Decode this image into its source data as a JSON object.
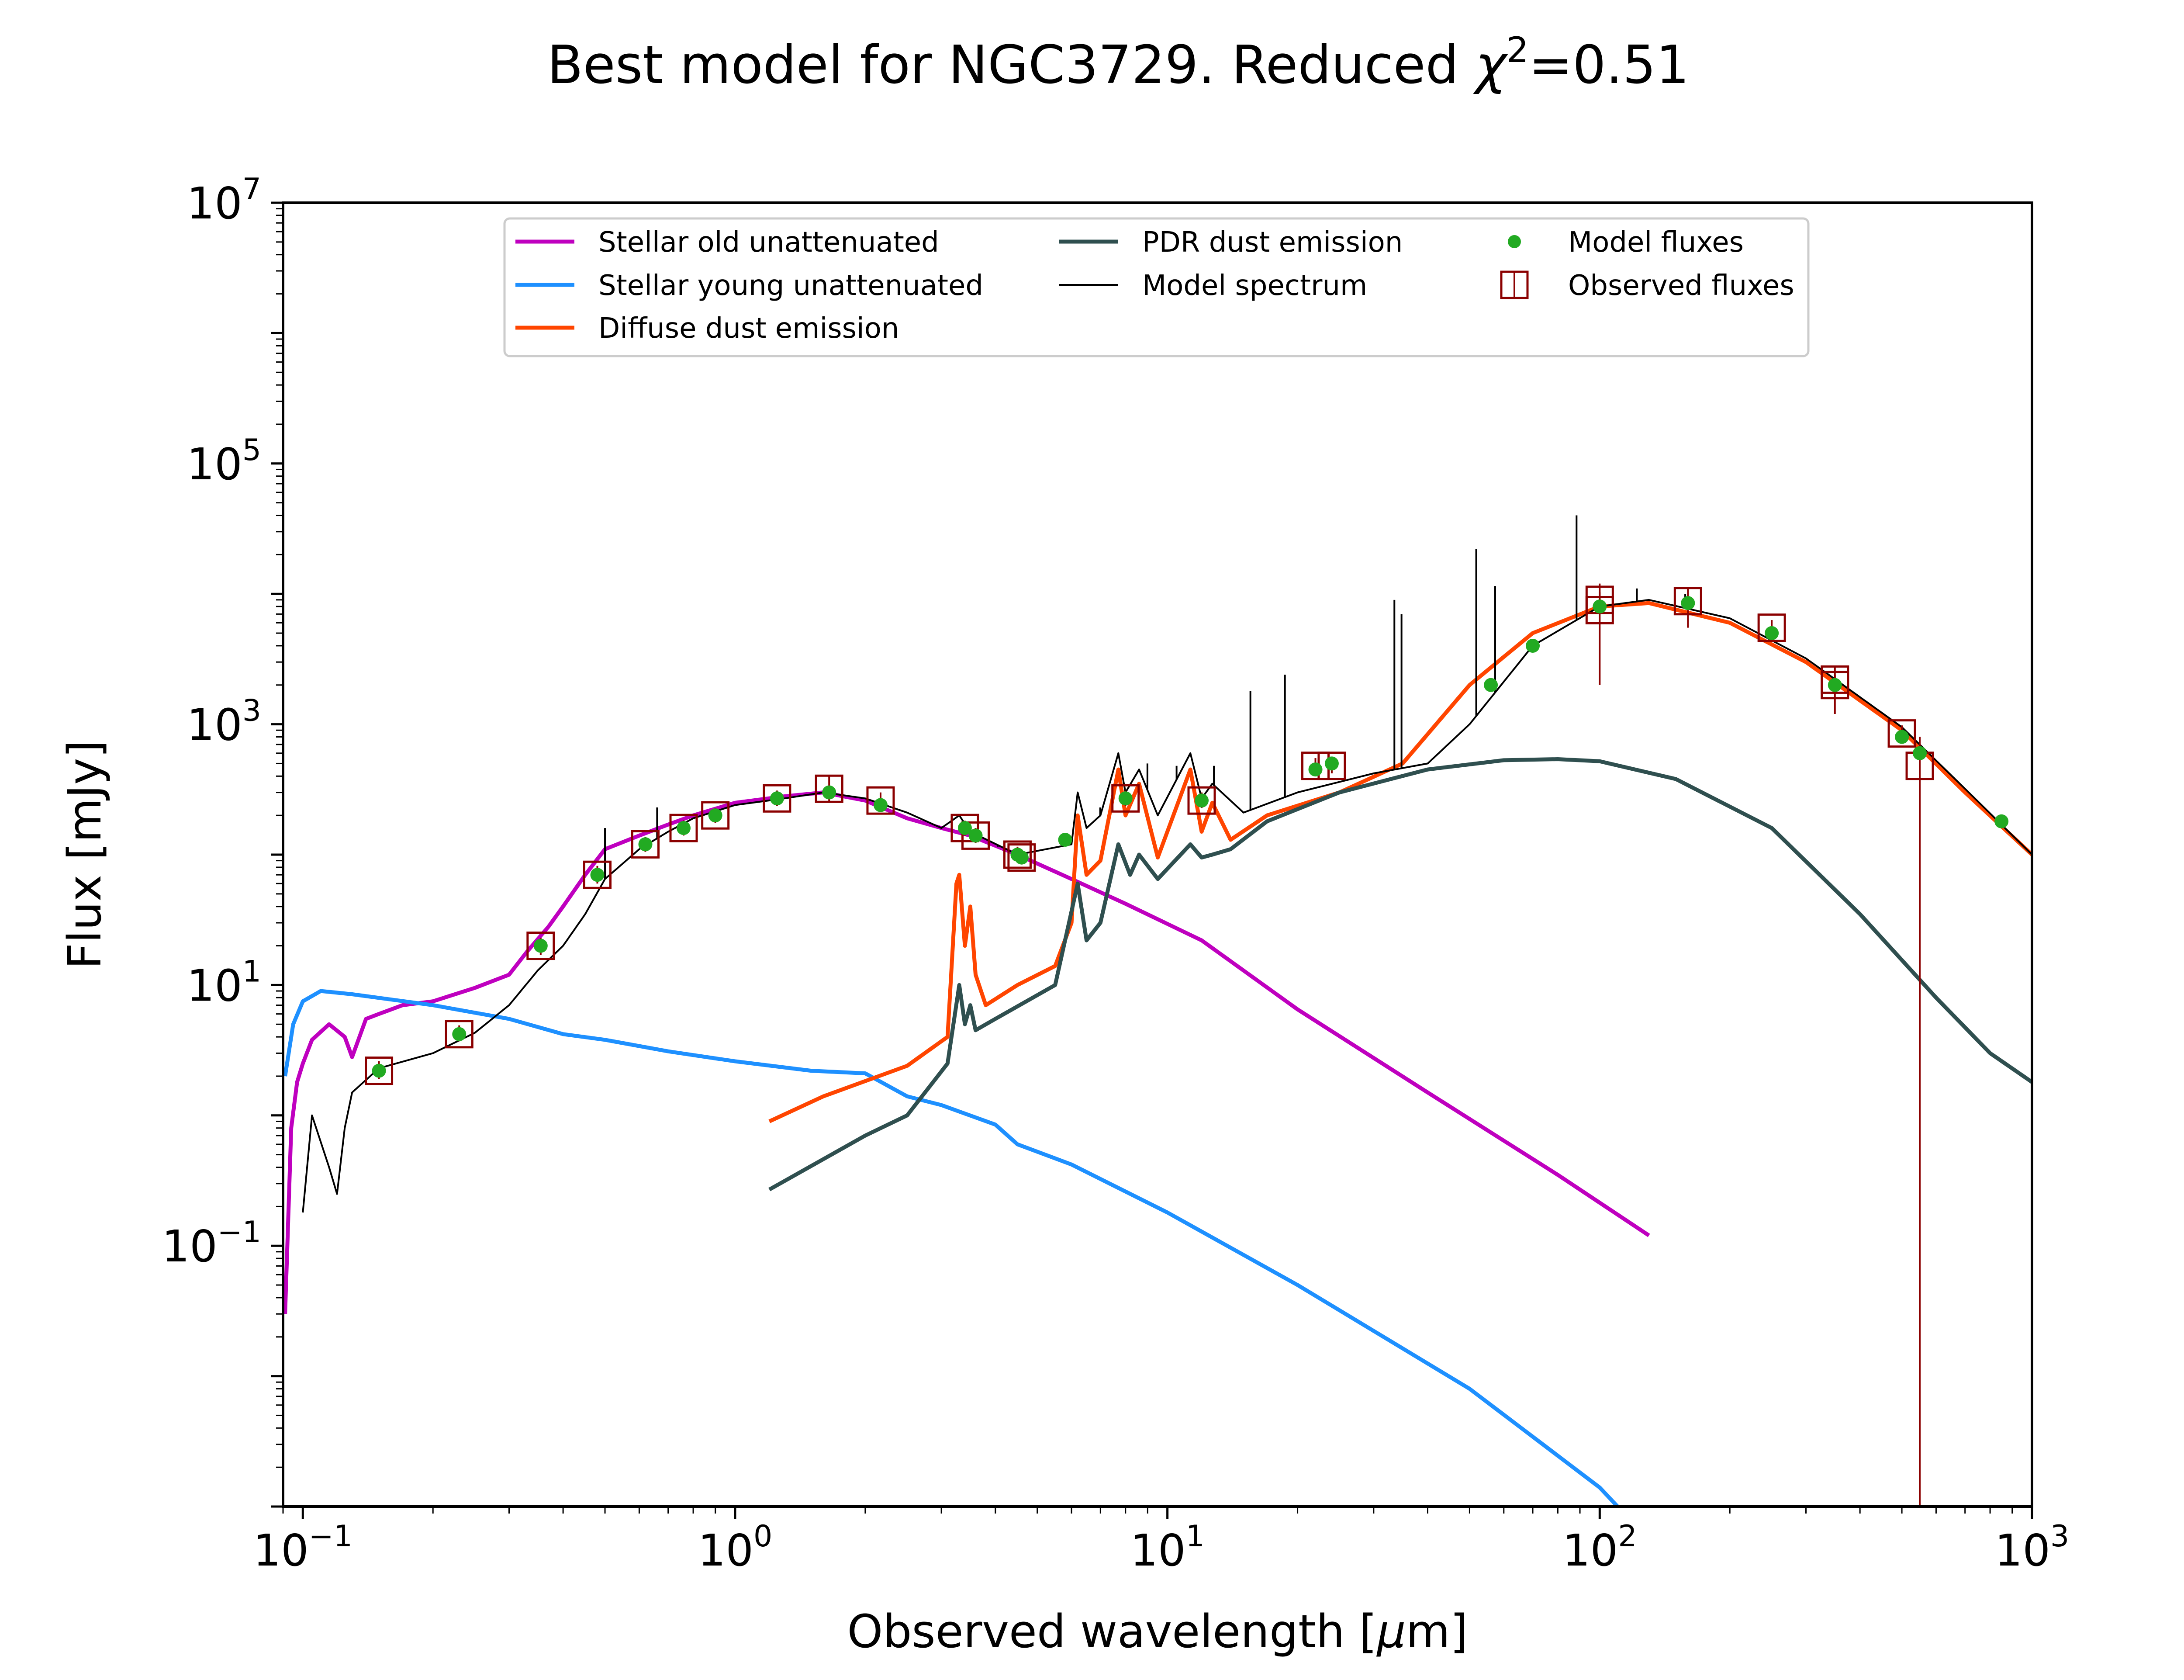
{
  "chart_data": {
    "type": "line",
    "title": "Best model for NGC3729. Reduced χ²=0.51",
    "title_parts": {
      "prefix": "Best model for NGC3729. Reduced ",
      "symbol": "χ",
      "exponent": "2",
      "suffix": "=0.51"
    },
    "xlabel": "Observed wavelength [μm]",
    "xlabel_parts": {
      "prefix": "Observed wavelength [",
      "unit_italic": "μ",
      "unit_rest": "m]"
    },
    "ylabel": "Flux [mJy]",
    "xscale": "log",
    "yscale": "log",
    "xlim": [
      0.09,
      1000
    ],
    "ylim": [
      0.001,
      10000000
    ],
    "grid": false,
    "legend_position": "top",
    "x_ticks": [
      {
        "value": 0.1,
        "base": "10",
        "exp": "−1"
      },
      {
        "value": 1,
        "base": "10",
        "exp": "0"
      },
      {
        "value": 10,
        "base": "10",
        "exp": "1"
      },
      {
        "value": 100,
        "base": "10",
        "exp": "2"
      },
      {
        "value": 1000,
        "base": "10",
        "exp": "3"
      }
    ],
    "y_ticks": [
      {
        "value": 0.1,
        "base": "10",
        "exp": "−1"
      },
      {
        "value": 10,
        "base": "10",
        "exp": "1"
      },
      {
        "value": 1000,
        "base": "10",
        "exp": "3"
      },
      {
        "value": 100000,
        "base": "10",
        "exp": "5"
      },
      {
        "value": 10000000,
        "base": "10",
        "exp": "7"
      }
    ],
    "legend": [
      {
        "label": "Stellar old unattenuated",
        "kind": "line",
        "color": "#bf00bf"
      },
      {
        "label": "Stellar young unattenuated",
        "kind": "line",
        "color": "#1e90ff"
      },
      {
        "label": "Diffuse dust emission",
        "kind": "line",
        "color": "#ff4500"
      },
      {
        "label": "PDR dust emission",
        "kind": "line",
        "color": "#2f4f4f"
      },
      {
        "label": "Model spectrum",
        "kind": "thin-line",
        "color": "#000000"
      },
      {
        "label": "Model fluxes",
        "kind": "dot",
        "color": "#22aa22"
      },
      {
        "label": "Observed fluxes",
        "kind": "square",
        "color": "#8b0000"
      }
    ],
    "series": [
      {
        "name": "Stellar old unattenuated",
        "color": "#bf00bf",
        "points": [
          [
            0.091,
            0.03
          ],
          [
            0.094,
            0.8
          ],
          [
            0.097,
            1.8
          ],
          [
            0.1,
            2.5
          ],
          [
            0.105,
            3.8
          ],
          [
            0.115,
            5
          ],
          [
            0.125,
            4
          ],
          [
            0.13,
            2.8
          ],
          [
            0.14,
            5.5
          ],
          [
            0.15,
            6
          ],
          [
            0.17,
            7
          ],
          [
            0.2,
            7.5
          ],
          [
            0.25,
            9.5
          ],
          [
            0.3,
            12
          ],
          [
            0.33,
            18
          ],
          [
            0.37,
            28
          ],
          [
            0.4,
            40
          ],
          [
            0.45,
            70
          ],
          [
            0.5,
            110
          ],
          [
            0.6,
            140
          ],
          [
            0.7,
            170
          ],
          [
            0.8,
            200
          ],
          [
            1.0,
            250
          ],
          [
            1.3,
            280
          ],
          [
            1.6,
            300
          ],
          [
            2.0,
            260
          ],
          [
            2.5,
            190
          ],
          [
            3.0,
            160
          ],
          [
            3.5,
            140
          ],
          [
            4.5,
            100
          ],
          [
            6,
            65
          ],
          [
            8,
            42
          ],
          [
            12,
            22
          ],
          [
            20,
            6.5
          ],
          [
            40,
            1.5
          ],
          [
            80,
            0.35
          ],
          [
            130,
            0.12
          ]
        ]
      },
      {
        "name": "Stellar young unattenuated",
        "color": "#1e90ff",
        "points": [
          [
            0.091,
            2
          ],
          [
            0.095,
            5
          ],
          [
            0.1,
            7.5
          ],
          [
            0.11,
            9
          ],
          [
            0.13,
            8.5
          ],
          [
            0.2,
            7
          ],
          [
            0.3,
            5.5
          ],
          [
            0.4,
            4.2
          ],
          [
            0.5,
            3.8
          ],
          [
            0.7,
            3.1
          ],
          [
            1.0,
            2.6
          ],
          [
            1.5,
            2.2
          ],
          [
            2.0,
            2.1
          ],
          [
            2.5,
            1.4
          ],
          [
            3.0,
            1.2
          ],
          [
            4.0,
            0.85
          ],
          [
            4.5,
            0.6
          ],
          [
            6,
            0.42
          ],
          [
            10,
            0.18
          ],
          [
            20,
            0.05
          ],
          [
            50,
            0.008
          ],
          [
            100,
            0.0014
          ],
          [
            110,
            0.001
          ]
        ]
      },
      {
        "name": "Diffuse dust emission",
        "color": "#ff4500",
        "points": [
          [
            1.2,
            0.9
          ],
          [
            1.6,
            1.4
          ],
          [
            2.5,
            2.4
          ],
          [
            3.1,
            4
          ],
          [
            3.25,
            60
          ],
          [
            3.3,
            70
          ],
          [
            3.4,
            20
          ],
          [
            3.5,
            40
          ],
          [
            3.6,
            12
          ],
          [
            3.8,
            7
          ],
          [
            4.5,
            10
          ],
          [
            5.5,
            14
          ],
          [
            6.0,
            30
          ],
          [
            6.2,
            200
          ],
          [
            6.5,
            70
          ],
          [
            7.0,
            90
          ],
          [
            7.7,
            450
          ],
          [
            8.0,
            200
          ],
          [
            8.6,
            350
          ],
          [
            9.5,
            95
          ],
          [
            11.3,
            450
          ],
          [
            12,
            150
          ],
          [
            12.7,
            250
          ],
          [
            14,
            130
          ],
          [
            17,
            200
          ],
          [
            25,
            300
          ],
          [
            35,
            500
          ],
          [
            50,
            2000
          ],
          [
            70,
            5000
          ],
          [
            100,
            8000
          ],
          [
            130,
            8500
          ],
          [
            200,
            6000
          ],
          [
            300,
            3000
          ],
          [
            500,
            900
          ],
          [
            700,
            300
          ],
          [
            1000,
            100
          ]
        ]
      },
      {
        "name": "PDR dust emission",
        "color": "#2f4f4f",
        "points": [
          [
            1.2,
            0.27
          ],
          [
            2.0,
            0.7
          ],
          [
            2.5,
            1.0
          ],
          [
            3.1,
            2.5
          ],
          [
            3.3,
            10
          ],
          [
            3.4,
            5
          ],
          [
            3.5,
            7
          ],
          [
            3.6,
            4.5
          ],
          [
            4.0,
            5.5
          ],
          [
            5.5,
            10
          ],
          [
            6.2,
            60
          ],
          [
            6.5,
            22
          ],
          [
            7.0,
            30
          ],
          [
            7.7,
            120
          ],
          [
            8.2,
            70
          ],
          [
            8.6,
            100
          ],
          [
            9.5,
            65
          ],
          [
            11.3,
            120
          ],
          [
            12,
            95
          ],
          [
            12.7,
            100
          ],
          [
            14,
            110
          ],
          [
            17,
            180
          ],
          [
            25,
            300
          ],
          [
            40,
            450
          ],
          [
            60,
            530
          ],
          [
            80,
            540
          ],
          [
            100,
            520
          ],
          [
            150,
            380
          ],
          [
            250,
            160
          ],
          [
            400,
            35
          ],
          [
            600,
            8
          ],
          [
            800,
            3
          ],
          [
            1000,
            1.8
          ]
        ]
      },
      {
        "name": "Model spectrum",
        "color": "#000000",
        "points": [
          [
            0.1,
            0.18
          ],
          [
            0.105,
            1
          ],
          [
            0.115,
            0.4
          ],
          [
            0.12,
            0.25
          ],
          [
            0.125,
            0.8
          ],
          [
            0.13,
            1.5
          ],
          [
            0.15,
            2.3
          ],
          [
            0.2,
            3
          ],
          [
            0.25,
            4.3
          ],
          [
            0.3,
            7
          ],
          [
            0.35,
            13
          ],
          [
            0.4,
            20
          ],
          [
            0.45,
            35
          ],
          [
            0.5,
            65
          ],
          [
            0.6,
            110
          ],
          [
            0.7,
            150
          ],
          [
            0.8,
            190
          ],
          [
            1.0,
            240
          ],
          [
            1.3,
            270
          ],
          [
            1.6,
            300
          ],
          [
            2.0,
            270
          ],
          [
            2.5,
            210
          ],
          [
            3.0,
            160
          ],
          [
            3.3,
            200
          ],
          [
            3.5,
            150
          ],
          [
            4.5,
            100
          ],
          [
            6.0,
            120
          ],
          [
            6.2,
            300
          ],
          [
            6.5,
            160
          ],
          [
            7.0,
            200
          ],
          [
            7.7,
            600
          ],
          [
            8.0,
            300
          ],
          [
            8.6,
            450
          ],
          [
            9.5,
            200
          ],
          [
            11.3,
            600
          ],
          [
            12,
            270
          ],
          [
            12.7,
            350
          ],
          [
            15,
            210
          ],
          [
            20,
            300
          ],
          [
            30,
            420
          ],
          [
            40,
            500
          ],
          [
            50,
            1000
          ],
          [
            70,
            4000
          ],
          [
            100,
            8000
          ],
          [
            130,
            9000
          ],
          [
            200,
            6500
          ],
          [
            300,
            3200
          ],
          [
            500,
            950
          ],
          [
            700,
            320
          ],
          [
            1000,
            100
          ]
        ]
      }
    ],
    "emission_lines": [
      [
        0.5,
        160
      ],
      [
        0.66,
        230
      ],
      [
        1.28,
        260
      ],
      [
        4.05,
        115
      ],
      [
        6.99,
        230
      ],
      [
        8.99,
        500
      ],
      [
        10.5,
        480
      ],
      [
        12.81,
        480
      ],
      [
        15.56,
        1800
      ],
      [
        18.7,
        2400
      ],
      [
        33.5,
        9000
      ],
      [
        34.8,
        7000
      ],
      [
        51.8,
        22000
      ],
      [
        57.3,
        11500
      ],
      [
        88.4,
        40000
      ],
      [
        121.9,
        11000
      ],
      [
        157.7,
        10000
      ]
    ],
    "model_fluxes": [
      [
        0.15,
        2.2
      ],
      [
        0.23,
        4.2
      ],
      [
        0.355,
        20
      ],
      [
        0.48,
        70
      ],
      [
        0.62,
        120
      ],
      [
        0.76,
        160
      ],
      [
        0.9,
        200
      ],
      [
        1.25,
        270
      ],
      [
        1.65,
        300
      ],
      [
        2.17,
        240
      ],
      [
        3.4,
        160
      ],
      [
        3.6,
        140
      ],
      [
        4.5,
        100
      ],
      [
        4.6,
        95
      ],
      [
        5.8,
        130
      ],
      [
        8.0,
        270
      ],
      [
        12.0,
        260
      ],
      [
        22,
        450
      ],
      [
        24,
        500
      ],
      [
        56,
        2000
      ],
      [
        70,
        4000
      ],
      [
        100,
        8000
      ],
      [
        160,
        8500
      ],
      [
        250,
        5000
      ],
      [
        350,
        2000
      ],
      [
        500,
        800
      ],
      [
        550,
        600
      ],
      [
        850,
        180
      ]
    ],
    "observed_fluxes": [
      {
        "x": 0.15,
        "y": 2.2,
        "err": [
          1.9,
          2.6
        ]
      },
      {
        "x": 0.23,
        "y": 4.2,
        "err": [
          3.7,
          4.9
        ]
      },
      {
        "x": 0.355,
        "y": 20,
        "err": [
          17,
          23
        ]
      },
      {
        "x": 0.48,
        "y": 70,
        "err": [
          60,
          82
        ]
      },
      {
        "x": 0.62,
        "y": 120,
        "err": [
          105,
          137
        ]
      },
      {
        "x": 0.76,
        "y": 160,
        "err": [
          140,
          183
        ]
      },
      {
        "x": 0.9,
        "y": 200,
        "err": [
          175,
          228
        ]
      },
      {
        "x": 1.25,
        "y": 270,
        "err": [
          236,
          310
        ]
      },
      {
        "x": 1.65,
        "y": 320,
        "err": [
          250,
          410
        ]
      },
      {
        "x": 2.17,
        "y": 260,
        "err": [
          225,
          300
        ]
      },
      {
        "x": 3.4,
        "y": 160,
        "err": [
          140,
          182
        ]
      },
      {
        "x": 3.6,
        "y": 140,
        "err": [
          123,
          160
        ]
      },
      {
        "x": 4.5,
        "y": 100,
        "err": [
          88,
          115
        ]
      },
      {
        "x": 4.6,
        "y": 95,
        "err": [
          84,
          108
        ]
      },
      {
        "x": 8.0,
        "y": 270,
        "err": [
          236,
          310
        ]
      },
      {
        "x": 12.0,
        "y": 260,
        "err": [
          228,
          300
        ]
      },
      {
        "x": 22,
        "y": 480,
        "err": [
          420,
          550
        ]
      },
      {
        "x": 24,
        "y": 480,
        "err": [
          420,
          550
        ]
      },
      {
        "x": 100,
        "y": 7500,
        "err": [
          2000,
          12000
        ]
      },
      {
        "x": 100,
        "y": 9000,
        "err": [
          7900,
          10300
        ]
      },
      {
        "x": 160,
        "y": 8800,
        "err": [
          5500,
          11000
        ]
      },
      {
        "x": 250,
        "y": 5500,
        "err": [
          4800,
          6300
        ]
      },
      {
        "x": 350,
        "y": 2200,
        "err": [
          1200,
          2800
        ]
      },
      {
        "x": 350,
        "y": 2000,
        "err": [
          1700,
          2400
        ]
      },
      {
        "x": 500,
        "y": 850,
        "err": [
          740,
          980
        ]
      },
      {
        "x": 550,
        "y": 480,
        "err": [
          0.001,
          800
        ]
      }
    ]
  }
}
